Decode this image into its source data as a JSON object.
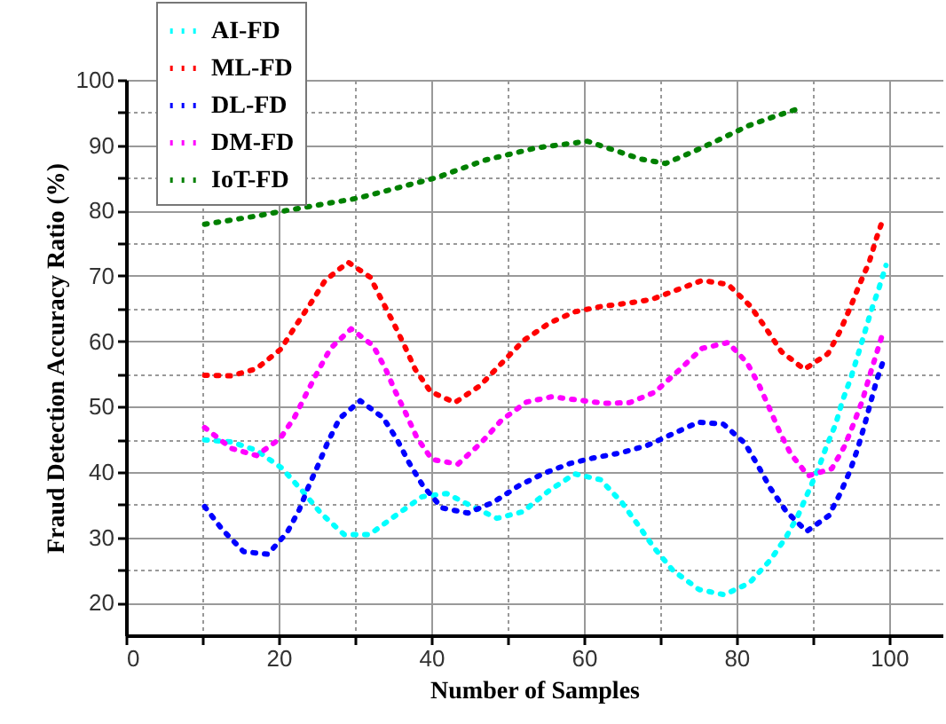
{
  "chart_data": {
    "type": "line",
    "xlabel": "Number of Samples",
    "ylabel": "Fraud Detection Accuracy Ratio (%)",
    "xlim": [
      0,
      107
    ],
    "ylim": [
      15,
      100
    ],
    "xticks": [
      0,
      {
        "value": 10,
        "label": null
      },
      20,
      {
        "value": 30,
        "label": null
      },
      40,
      {
        "value": 50,
        "label": null
      },
      60,
      {
        "value": 70,
        "label": null
      },
      80,
      {
        "value": 90,
        "label": null
      },
      100
    ],
    "yticks": [
      20,
      {
        "value": 25,
        "label": null
      },
      30,
      {
        "value": 35,
        "label": null
      },
      40,
      {
        "value": 45,
        "label": null
      },
      50,
      {
        "value": 55,
        "label": null
      },
      60,
      {
        "value": 65,
        "label": null
      },
      70,
      {
        "value": 75,
        "label": null
      },
      80,
      {
        "value": 85,
        "label": null
      },
      90,
      {
        "value": 95,
        "label": null
      },
      100
    ],
    "grid": true,
    "legend": "top left",
    "marker": "none",
    "line_style": "dotted",
    "series": [
      {
        "name": "AI-FD",
        "color": "#00ffff",
        "x": [
          10.3,
          13.8,
          17.1,
          20.4,
          23.1,
          25.6,
          28.6,
          31.9,
          35.3,
          38.8,
          42,
          45.4,
          48.6,
          52,
          55.4,
          58.8,
          62.2,
          65,
          67.1,
          69.2,
          71.7,
          75.1,
          78.4,
          81.7,
          84.5,
          86.5,
          88.1,
          89.4,
          90.7,
          91.8,
          93,
          93.9,
          95,
          95.9,
          96.8,
          97.7,
          98.7,
          99.6
        ],
        "values": [
          44.9,
          44.6,
          43.3,
          40.6,
          37.1,
          33.6,
          30.4,
          30.4,
          33.3,
          36.2,
          36.7,
          34.7,
          32.9,
          33.9,
          37.1,
          39.7,
          38.8,
          35.3,
          31.9,
          28.4,
          24.9,
          22,
          21.2,
          23,
          26.6,
          30,
          33.4,
          36.9,
          40.4,
          43.9,
          47.3,
          50.9,
          54.4,
          57.8,
          61.3,
          64.8,
          68.2,
          71.6
        ]
      },
      {
        "name": "ML-FD",
        "color": "#ff0000",
        "x": [
          10.3,
          13.8,
          17.1,
          20.3,
          22.2,
          24.2,
          26.1,
          29.1,
          32,
          33.6,
          35.1,
          36.5,
          37.9,
          39.9,
          43.1,
          46.4,
          49.2,
          52.1,
          55.5,
          58.8,
          62.2,
          65.6,
          68.9,
          72.3,
          75.5,
          78.9,
          81.8,
          83.8,
          85.9,
          88.9,
          92,
          93.6,
          94.9,
          96.1,
          97.4,
          98.3,
          99.3
        ],
        "values": [
          54.8,
          54.7,
          55.8,
          58.8,
          62.3,
          65.8,
          69.3,
          72.1,
          69.8,
          66.1,
          62.7,
          59.3,
          55.7,
          52.3,
          50.6,
          53.2,
          56.6,
          60.1,
          62.8,
          64.5,
          65.3,
          65.8,
          66.4,
          67.9,
          69.3,
          68.7,
          65.4,
          62.1,
          58.4,
          55.7,
          58.1,
          61.6,
          65.1,
          68.6,
          72.1,
          75.6,
          79
        ]
      },
      {
        "name": "DL-FD",
        "color": "#0000ff",
        "x": [
          10.3,
          12.6,
          15.4,
          18.6,
          21.1,
          22.7,
          23.9,
          25.2,
          26.5,
          28,
          30.7,
          33.7,
          35.5,
          37.1,
          38.9,
          41.4,
          44.8,
          48.2,
          51.5,
          54.8,
          58.2,
          61.5,
          64.8,
          68.2,
          71.6,
          75,
          78.3,
          81.1,
          82.9,
          84.5,
          86.5,
          89.2,
          92.1,
          93.6,
          94.9,
          95.9,
          96.8,
          97.6,
          98.4,
          99.4
        ],
        "values": [
          34.7,
          31.2,
          27.8,
          27.4,
          30.7,
          34.2,
          37.7,
          41.1,
          44.7,
          48.2,
          50.9,
          48.3,
          45,
          41.4,
          37.9,
          34.5,
          33.7,
          35.4,
          37.9,
          39.8,
          41.3,
          42.2,
          42.9,
          44,
          45.8,
          47.6,
          47.3,
          44.4,
          40.8,
          37.4,
          34,
          30.9,
          33.3,
          36.7,
          40.2,
          43.6,
          47.2,
          50.7,
          54.1,
          57.5
        ]
      },
      {
        "name": "DM-FD",
        "color": "#ff00ff",
        "x": [
          10.3,
          13.8,
          17.1,
          20.2,
          22.1,
          23.6,
          25.1,
          26.8,
          29.5,
          32.4,
          34,
          35.3,
          36.7,
          38.1,
          40.1,
          43.5,
          46.5,
          49.2,
          52.5,
          55.8,
          59.3,
          62.6,
          66,
          69.3,
          72.5,
          75.5,
          78.9,
          81.4,
          83,
          84.3,
          85.6,
          87.1,
          89.4,
          92.5,
          94.2,
          95.4,
          96.5,
          97.4,
          98.3,
          99.2
        ],
        "values": [
          46.8,
          43.6,
          42.5,
          45.1,
          48.4,
          51.9,
          55.3,
          58.9,
          61.9,
          59.3,
          55.8,
          52.3,
          48.9,
          45.3,
          41.9,
          41.2,
          44.4,
          47.9,
          50.7,
          51.5,
          51,
          50.5,
          50.6,
          52.2,
          55.6,
          58.9,
          59.8,
          56.7,
          53.2,
          49.8,
          46.3,
          42.8,
          39.4,
          40.5,
          44,
          47.5,
          50.9,
          54.5,
          57.9,
          61.3
        ]
      },
      {
        "name": "IoT-FD",
        "color": "#008000",
        "x": [
          10.3,
          17.3,
          20.5,
          30.4,
          40.6,
          47,
          53.8,
          60.5,
          67.4,
          70.7,
          74.7,
          78.2,
          81.6,
          85,
          88.4
        ],
        "values": [
          77.9,
          79.2,
          79.9,
          81.9,
          85,
          87.7,
          89.6,
          90.6,
          87.9,
          87.2,
          89.2,
          91.1,
          93,
          94.4,
          95.7
        ]
      }
    ]
  }
}
